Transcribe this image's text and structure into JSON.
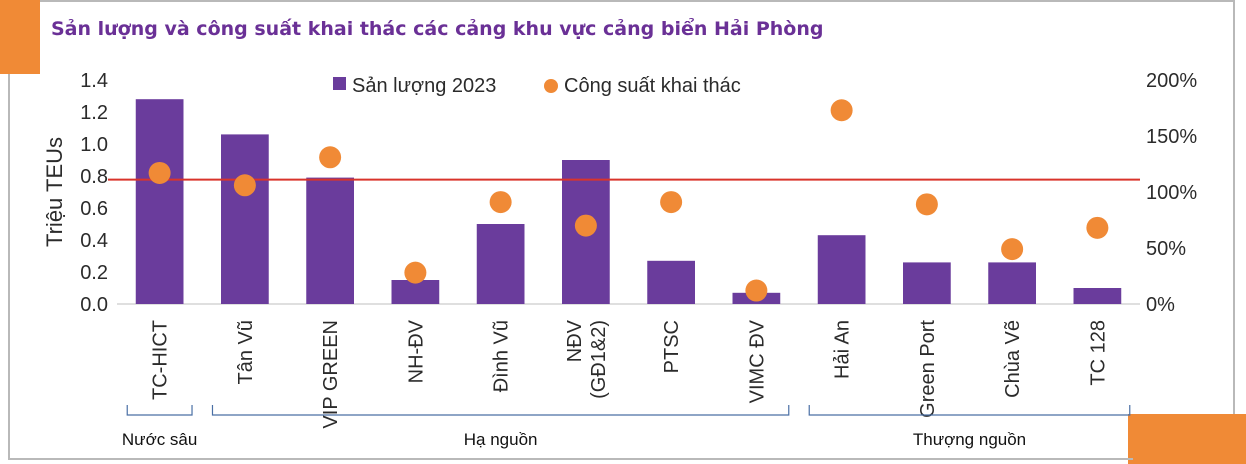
{
  "chart_data": {
    "type": "bar",
    "title": "Sản lượng và công suất khai thác các cảng khu vực cảng biển Hải Phòng",
    "ylabel": "Triệu TEUs",
    "ylim": [
      0,
      1.4
    ],
    "y_ticks": [
      "0.0",
      "0.2",
      "0.4",
      "0.6",
      "0.8",
      "1.0",
      "1.2",
      "1.4"
    ],
    "y2lim": [
      0,
      2
    ],
    "y2_ticks": [
      "0%",
      "50%",
      "100%",
      "150%",
      "200%"
    ],
    "categories": [
      "TC-HICT",
      "Tân Vũ",
      "VIP GREEN",
      "NH-ĐV",
      "Đình Vũ",
      "NĐV (GĐ1&2)",
      "PTSC",
      "VIMC ĐV",
      "Hải An",
      "Green Port",
      "Chùa Vẽ",
      "TC 128"
    ],
    "category_lines": [
      [
        "TC-HICT"
      ],
      [
        "Tân Vũ"
      ],
      [
        "VIP GREEN"
      ],
      [
        "NH-ĐV"
      ],
      [
        "Đình Vũ"
      ],
      [
        "NĐV",
        "(GĐ1&2)"
      ],
      [
        "PTSC"
      ],
      [
        "VIMC ĐV"
      ],
      [
        "Hải An"
      ],
      [
        "Green Port"
      ],
      [
        "Chùa Vẽ"
      ],
      [
        "TC 128"
      ]
    ],
    "series": [
      {
        "name": "Sản lượng 2023",
        "type": "bar",
        "axis": "left",
        "color": "#6a3c9c",
        "values": [
          1.28,
          1.06,
          0.79,
          0.15,
          0.5,
          0.9,
          0.27,
          0.07,
          0.43,
          0.26,
          0.26,
          0.1
        ]
      },
      {
        "name": "Công suất khai thác",
        "type": "scatter",
        "axis": "right",
        "color": "#f08a36",
        "values": [
          1.17,
          1.06,
          1.31,
          0.28,
          0.91,
          0.7,
          0.91,
          0.12,
          1.73,
          0.89,
          0.49,
          0.68
        ]
      }
    ],
    "reference_line": {
      "axis": "right",
      "value": 1.11,
      "color": "#d9342b"
    },
    "groups": [
      {
        "label": "Nước sâu",
        "from": 0,
        "to": 0
      },
      {
        "label": "Hạ nguồn",
        "from": 1,
        "to": 7
      },
      {
        "label": "Thượng nguồn",
        "from": 8,
        "to": 11
      }
    ],
    "legend_position": "top",
    "grid": false
  }
}
